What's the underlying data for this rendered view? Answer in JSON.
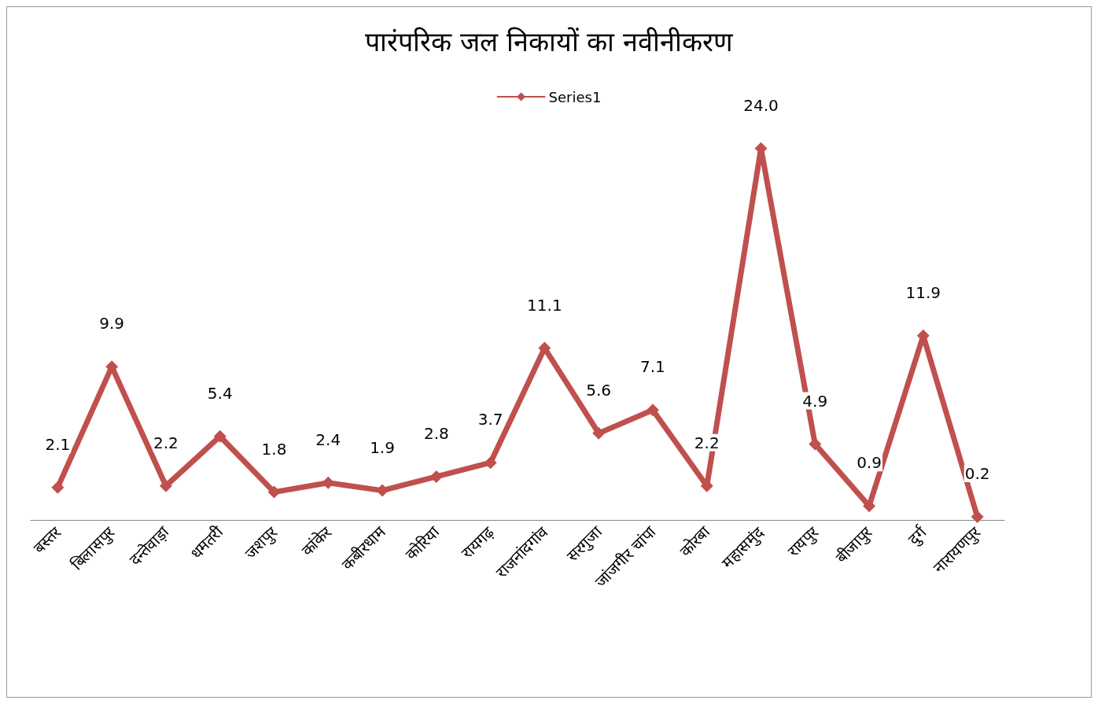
{
  "chart_data": {
    "type": "line",
    "title": "पारंपरिक जल निकायों का नवीनीकरण",
    "categories": [
      "बस्तर",
      "बिलासपुर",
      "दन्तेवाड़ा",
      "धमतरी",
      "जशपुर",
      "कांकेर",
      "कबीरधाम",
      "कोरिया",
      "रायगढ़",
      "राजनांदगांव",
      "सरगुजा",
      "जांजगीर चांपा",
      "कोरबा",
      "महासमुंद",
      "रायपुर",
      "बीजापुर",
      "दुर्ग",
      "नारायणपुर"
    ],
    "series": [
      {
        "name": "Series1",
        "color": "#c0504d",
        "values": [
          2.1,
          9.9,
          2.2,
          5.4,
          1.8,
          2.4,
          1.9,
          2.8,
          3.7,
          11.1,
          5.6,
          7.1,
          2.2,
          24.0,
          4.9,
          0.9,
          11.9,
          0.2
        ],
        "value_labels": [
          "2.1",
          "9.9",
          "2.2",
          "5.4",
          "1.8",
          "2.4",
          "1.9",
          "2.8",
          "3.7",
          "11.1",
          "5.6",
          "7.1",
          "2.2",
          "24.0",
          "4.9",
          "0.9",
          "11.9",
          "0.2"
        ]
      }
    ],
    "legend": "top",
    "grid": false,
    "marker": "diamond",
    "line_style": "solid"
  }
}
